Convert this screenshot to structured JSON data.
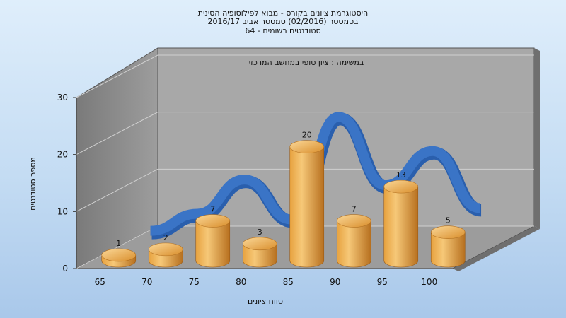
{
  "titles": [
    "היסטוגרמת ציונים בקורס - מבוא לפילוסופיה הסינית",
    "בסמסטר (02/2016) סמסטר אביב 2016/17",
    "64 - סטודנטים רשומים"
  ],
  "colors": {
    "bar_light": "#f6c878",
    "bar_mid": "#e7a23f",
    "bar_dark": "#b7701f",
    "curve": "#3a74c6",
    "floor": "#9c9c9c",
    "back_wall": "#a8a8a8",
    "side_wall": "#8a8a8a"
  },
  "chart_data": {
    "type": "bar",
    "title": "היסטוגרמת ציונים בקורס - מבוא לפילוסופיה הסינית",
    "subtitle": "בסמסטר (02/2016) סמסטר אביב 2016/17 · 64 - סטודנטים רשומים",
    "annotation": "במשימה : ציון סופי במחשב המרכזי",
    "xlabel": "טווח ציונים",
    "ylabel": "מספר סטודנטים",
    "categories": [
      "65",
      "70",
      "75",
      "80",
      "85",
      "90",
      "95",
      "100"
    ],
    "bar_categories": [
      "65",
      "70",
      "75",
      "80",
      "85",
      "90",
      "95",
      "100"
    ],
    "values": [
      1,
      2,
      7,
      3,
      20,
      7,
      13,
      5
    ],
    "y_ticks": [
      0,
      10,
      20,
      30
    ],
    "ylim": [
      0,
      30
    ],
    "grid": true,
    "curve_values": [
      2,
      5,
      11,
      4,
      22,
      10,
      16,
      6
    ],
    "style": "3d"
  }
}
